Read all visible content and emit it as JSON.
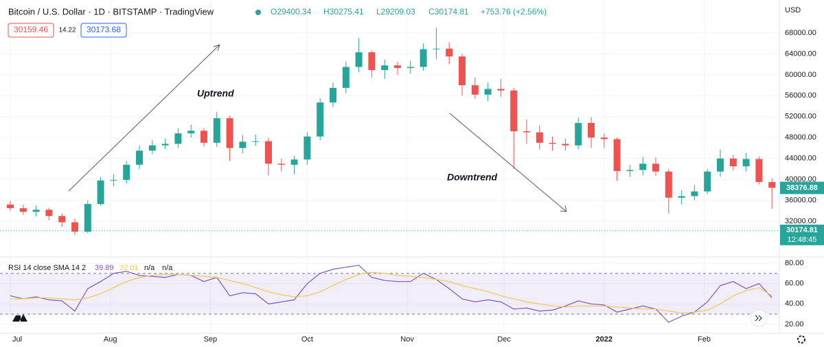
{
  "header": {
    "symbol": "Bitcoin / U.S. Dollar · 1D · BITSTAMP · TradingView",
    "ohlc": [
      "O29400.34",
      "H30275.41",
      "L29209.03",
      "C30174.81",
      "+753.76 (+2.56%)"
    ],
    "bid": "30159.46",
    "spread": "14.22",
    "ask": "30173.68"
  },
  "annotations": {
    "up": "Uptrend",
    "down": "Downtrend"
  },
  "chart_data": [
    {
      "type": "candlestick",
      "currency": "USD",
      "up_color": "#26a69a",
      "down_color": "#ef5350",
      "x": [
        0,
        4,
        8,
        12,
        16,
        20,
        24,
        28,
        32,
        36,
        40,
        44,
        48,
        52,
        56,
        60,
        64,
        68,
        72,
        76,
        80,
        84,
        88,
        92,
        96,
        100,
        104,
        108,
        112,
        116,
        120,
        124,
        128,
        132,
        136,
        140,
        144,
        148,
        152,
        156,
        160,
        164,
        168,
        172,
        176,
        180,
        184,
        188,
        192,
        196,
        200,
        204,
        208,
        212,
        216,
        220,
        224,
        228,
        232,
        236
      ],
      "open": [
        35200,
        34500,
        33800,
        34200,
        33000,
        31800,
        30000,
        35300,
        39800,
        39900,
        42800,
        45500,
        46500,
        46800,
        48800,
        49300,
        47000,
        51700,
        46000,
        47200,
        47300,
        43000,
        42800,
        43800,
        48200,
        54700,
        57500,
        61500,
        64300,
        60900,
        61800,
        61300,
        61500,
        64900,
        65000,
        63500,
        58000,
        56200,
        57300,
        57000,
        49200,
        49000,
        47000,
        46800,
        46500,
        50800,
        48000,
        47700,
        41600,
        41800,
        43000,
        41500,
        36500,
        36800,
        37700,
        41500,
        44000,
        42500,
        43900,
        39500
      ],
      "high": [
        35900,
        35200,
        35000,
        34600,
        33500,
        32500,
        36000,
        40500,
        41000,
        43500,
        46500,
        47500,
        47800,
        49800,
        50500,
        49800,
        52900,
        52200,
        48500,
        48600,
        47900,
        44000,
        44500,
        49000,
        55500,
        58500,
        62500,
        67000,
        64600,
        62900,
        62500,
        62700,
        66000,
        69000,
        66200,
        64000,
        59500,
        58500,
        59200,
        57500,
        51500,
        50300,
        48200,
        47800,
        51800,
        51900,
        48800,
        48000,
        42800,
        44300,
        44200,
        42000,
        37900,
        38900,
        42000,
        45700,
        44700,
        45000,
        44400,
        40200
      ],
      "low": [
        34000,
        33200,
        32900,
        32200,
        30900,
        29300,
        29700,
        35000,
        38700,
        39200,
        42000,
        44800,
        45800,
        46000,
        48000,
        46300,
        46200,
        43500,
        45000,
        46400,
        40800,
        41500,
        41000,
        42800,
        47500,
        53800,
        56500,
        60500,
        59500,
        59200,
        60000,
        60200,
        60800,
        63000,
        62000,
        56000,
        55400,
        55000,
        55800,
        42000,
        46800,
        45700,
        45500,
        45500,
        45800,
        46000,
        46000,
        39700,
        40500,
        40800,
        40700,
        33500,
        35200,
        36000,
        37200,
        40500,
        41700,
        41500,
        39000,
        34400
      ],
      "close": [
        34500,
        33800,
        34200,
        33000,
        31800,
        30000,
        35300,
        39800,
        39900,
        42800,
        45500,
        46500,
        46800,
        48800,
        49300,
        47000,
        51700,
        46000,
        47200,
        47300,
        43000,
        42800,
        43800,
        48200,
        54700,
        57500,
        61500,
        64300,
        60900,
        61800,
        61300,
        61500,
        64900,
        65000,
        63500,
        58000,
        56200,
        57300,
        57000,
        49200,
        49000,
        47000,
        46800,
        46500,
        50800,
        48000,
        47700,
        41600,
        41800,
        43000,
        41500,
        36500,
        36800,
        37700,
        41500,
        44000,
        42500,
        43900,
        39500,
        38400
      ],
      "xlim": [
        -3.19,
        238.3
      ],
      "xticks": [
        {
          "value": 0,
          "label": "Jul"
        },
        {
          "value": 31,
          "label": "Aug"
        },
        {
          "value": 62,
          "label": "Sep"
        },
        {
          "value": 92,
          "label": "Oct"
        },
        {
          "value": 123,
          "label": "Nov"
        },
        {
          "value": 153,
          "label": "Dec"
        },
        {
          "value": 184,
          "label": "2022"
        },
        {
          "value": 215,
          "label": "Feb"
        }
      ],
      "ylim": [
        25430,
        74300
      ],
      "yticks": [
        {
          "value": 32000,
          "label": "32000.00"
        },
        {
          "value": 36000,
          "label": "36000.00"
        },
        {
          "value": 40000,
          "label": "40000.00"
        },
        {
          "value": 44000,
          "label": "44000.00"
        },
        {
          "value": 48000,
          "label": "48000.00"
        },
        {
          "value": 52000,
          "label": "52000.00"
        },
        {
          "value": 56000,
          "label": "56000.00"
        },
        {
          "value": 60000,
          "label": "60000.00"
        },
        {
          "value": 64000,
          "label": "64000.00"
        },
        {
          "value": 68000,
          "label": "68000.00"
        }
      ],
      "last_price": 38376.88,
      "crosshair_price": 30174.81,
      "countdown": "12:48:45",
      "grid": true
    },
    {
      "type": "line",
      "title": "RSI 14 close SMA 14 2",
      "readouts": [
        "39.89",
        "32.01",
        "n/a",
        "n/a"
      ],
      "x": [
        0,
        4,
        8,
        12,
        16,
        20,
        24,
        28,
        32,
        36,
        40,
        44,
        48,
        52,
        56,
        60,
        64,
        68,
        72,
        76,
        80,
        84,
        88,
        92,
        96,
        100,
        104,
        108,
        112,
        116,
        120,
        124,
        128,
        132,
        136,
        140,
        144,
        148,
        152,
        156,
        160,
        164,
        168,
        172,
        176,
        180,
        184,
        188,
        192,
        196,
        200,
        204,
        208,
        212,
        216,
        220,
        224,
        228,
        232,
        236
      ],
      "series": [
        {
          "color": "#7e57c2",
          "values": [
            48,
            45,
            47,
            44,
            43,
            33,
            55,
            62,
            70,
            72,
            68,
            67,
            66,
            69,
            68,
            62,
            66,
            48,
            51,
            50,
            40,
            42,
            44,
            60,
            70,
            74,
            76,
            78,
            66,
            63,
            62,
            62,
            70,
            64,
            55,
            45,
            42,
            44,
            42,
            35,
            36,
            33,
            34,
            38,
            43,
            40,
            39,
            32,
            35,
            38,
            35,
            22,
            28,
            32,
            42,
            58,
            62,
            55,
            60,
            46
          ]
        },
        {
          "color": "#f2c94c",
          "values": [
            45,
            45,
            46,
            46,
            45,
            44,
            46,
            50,
            56,
            62,
            66,
            68,
            69,
            69,
            68,
            67,
            66,
            63,
            60,
            56,
            52,
            49,
            47,
            48,
            52,
            58,
            64,
            69,
            71,
            70,
            68,
            67,
            66,
            64,
            62,
            58,
            55,
            52,
            48,
            45,
            42,
            40,
            38,
            37,
            38,
            38,
            38,
            37,
            36,
            35,
            35,
            33,
            31,
            32,
            34,
            40,
            48,
            53,
            56,
            48
          ]
        }
      ],
      "levels": [
        70,
        30
      ],
      "xlim": [
        -3.19,
        238.3
      ],
      "ylim": [
        11.24,
        85.39
      ],
      "yticks": [
        {
          "value": 20,
          "label": "20.00"
        },
        {
          "value": 40,
          "label": "40.00"
        },
        {
          "value": 60,
          "label": "60.00"
        },
        {
          "value": 80,
          "label": "80.00"
        }
      ]
    }
  ]
}
